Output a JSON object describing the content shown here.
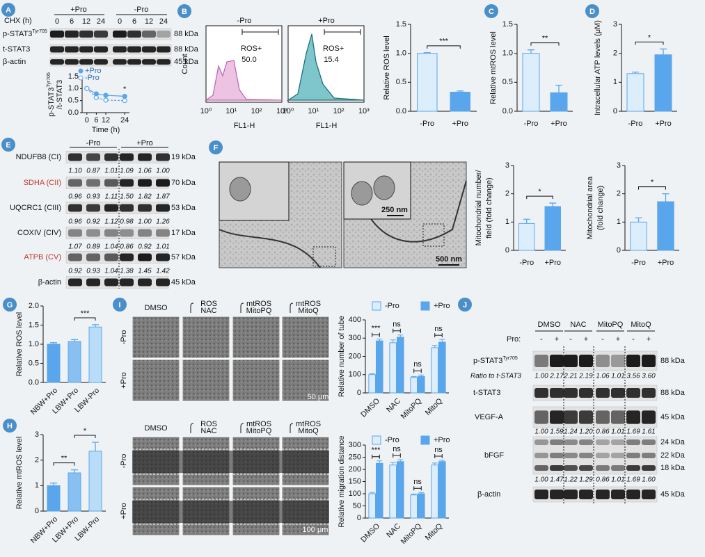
{
  "panels": {
    "A": {
      "label": "A",
      "chx": "CHX (h)",
      "groups": [
        "+Pro",
        "-Pro"
      ],
      "lanes": [
        "0",
        "6",
        "12",
        "24",
        "0",
        "6",
        "12",
        "24"
      ],
      "rows": [
        {
          "name": "p-STAT3",
          "sup": "Tyr705",
          "kda": "88 kDa"
        },
        {
          "name": "t-STAT3",
          "kda": "88 kDa"
        },
        {
          "name": "β-actin",
          "kda": "45 kDa"
        }
      ]
    },
    "B": {
      "label": "B",
      "ylabel": "Count",
      "xlabel": "FL1-H",
      "xticks": [
        "10⁰",
        "10¹",
        "10²",
        "10³"
      ],
      "plots": [
        {
          "title": "-Pro",
          "gate": "ROS+",
          "value": "50.0"
        },
        {
          "title": "+Pro",
          "gate": "ROS+",
          "value": "15.4"
        }
      ]
    },
    "C": {
      "label": "C"
    },
    "D": {
      "label": "D"
    },
    "E": {
      "label": "E",
      "groups": [
        "-Pro",
        "+Pro"
      ],
      "rows": [
        {
          "name": "NDUFB8 (CI)",
          "kda": "19 kDa",
          "ratios": [
            "1.10",
            "0.87",
            "1.01",
            "1.09",
            "1.06",
            "1.00"
          ]
        },
        {
          "name": "SDHA (CII)",
          "kda": "70 kDa",
          "color": "#c0392b",
          "ratios": [
            "0.96",
            "0.93",
            "1.11",
            "1.50",
            "1.82",
            "1.87"
          ]
        },
        {
          "name": "UQCRC1 (CIII)",
          "kda": "53 kDa",
          "ratios": [
            "0.96",
            "0.92",
            "1.12",
            "0.98",
            "1.00",
            "1.26"
          ]
        },
        {
          "name": "COXIV (CIV)",
          "kda": "17 kDa",
          "ratios": [
            "1.07",
            "0.89",
            "1.04",
            "0.86",
            "0.92",
            "1.01"
          ]
        },
        {
          "name": "ATPB (CV)",
          "kda": "57 kDa",
          "color": "#c0392b",
          "ratios": [
            "0.92",
            "0.93",
            "1.04",
            "1.38",
            "1.45",
            "1.42"
          ]
        },
        {
          "name": "β-actin",
          "kda": "45 kDa"
        }
      ]
    },
    "F": {
      "label": "F",
      "scales": [
        "250 nm",
        "500 nm"
      ]
    },
    "G": {
      "label": "G"
    },
    "H": {
      "label": "H"
    },
    "I": {
      "label": "I",
      "tube": {
        "columns": [
          {
            "top": "DMSO"
          },
          {
            "top": "ROS",
            "bottom": "NAC"
          },
          {
            "top": "mtROS",
            "bottom": "MitoPQ"
          },
          {
            "top": "mtROS",
            "bottom": "MitoQ"
          }
        ],
        "rows": [
          "-Pro",
          "+Pro"
        ],
        "scale": "50 μm"
      },
      "migration": {
        "columns": [
          {
            "top": "DMSO"
          },
          {
            "top": "ROS",
            "bottom": "NAC"
          },
          {
            "top": "mtROS",
            "bottom": "MitoPQ"
          },
          {
            "top": "mtROS",
            "bottom": "MitoQ"
          }
        ],
        "rows": [
          "-Pro",
          "+Pro"
        ],
        "scale": "100 μm"
      }
    },
    "J": {
      "label": "J",
      "columns": [
        "DMSO",
        "NAC",
        "MitoPQ",
        "MitoQ"
      ],
      "pro": "Pro:",
      "signs": [
        "-",
        "+",
        "-",
        "+",
        "-",
        "+",
        "-",
        "+"
      ],
      "rows": [
        {
          "name": "p-STAT3",
          "sup": "Tyr705",
          "kda": "88 kDa"
        },
        {
          "ratio_label": "Ratio to t-STAT3",
          "ratios": [
            "1.00",
            "2.17",
            "2.21",
            "2.19",
            "1.06",
            "1.01",
            "3.56",
            "3.60"
          ]
        },
        {
          "name": "t-STAT3",
          "kda": "88 kDa"
        },
        {
          "name": "VEGF-A",
          "kda": "45 kDa",
          "ratios": [
            "1.00",
            "1.59",
            "1.24",
            "1.20",
            "0.86",
            "1.01",
            "1.69",
            "1.61"
          ]
        },
        {
          "name": "bFGF",
          "kdas": [
            "24 kDa",
            "22 kDa",
            "18 kDa"
          ],
          "ratios": [
            "1.00",
            "1.47",
            "1.22",
            "1.29",
            "0.86",
            "1.01",
            "1.69",
            "1.60"
          ]
        },
        {
          "name": "β-actin",
          "kda": "45 kDa"
        }
      ]
    }
  },
  "chart_data": [
    {
      "type": "line",
      "ylabel": {
        "text": "p-STAT3",
        "sup": "Tyr705",
        "line2": "/t-STAT3"
      },
      "xlabel": "Time (h)",
      "x": [
        0,
        6,
        12,
        24
      ],
      "xlim": [
        -3,
        27
      ],
      "xticks": [
        0,
        6,
        12,
        24
      ],
      "ylim": [
        0,
        1.5
      ],
      "yticks": [
        {
          "value": 0,
          "label": "0.0"
        },
        0.5,
        {
          "value": 1,
          "label": "1.0"
        },
        1.5
      ],
      "series": [
        {
          "name": "+Pro",
          "color": "#5aa6ec",
          "linestyle": "solid",
          "values": [
            1.0,
            0.78,
            0.72,
            0.68
          ]
        },
        {
          "name": "-Pro",
          "color": "#5aa6ec",
          "linestyle": "dashed",
          "values": [
            1.0,
            0.62,
            0.52,
            0.5
          ]
        }
      ],
      "annotations": [
        "*"
      ]
    },
    {
      "type": "bar",
      "ylabel": "Relative ROS level",
      "categories": [
        "-Pro",
        "+Pro"
      ],
      "values": [
        1.0,
        0.33
      ],
      "errors": [
        0.01,
        0.02
      ],
      "colors": [
        "#dcedfb",
        "#5aa6ec"
      ],
      "ylim": [
        0,
        1.5
      ],
      "yticks": [
        {
          "value": 0,
          "label": "0.0"
        },
        0.5,
        {
          "value": 1,
          "label": "1.0"
        },
        1.5
      ],
      "annotations": [
        "***"
      ]
    },
    {
      "type": "bar",
      "ylabel": "Relative mtROS level",
      "categories": [
        "-Pro",
        "+Pro"
      ],
      "values": [
        1.0,
        0.32
      ],
      "errors": [
        0.06,
        0.13
      ],
      "colors": [
        "#dcedfb",
        "#5aa6ec"
      ],
      "ylim": [
        0,
        1.5
      ],
      "yticks": [
        {
          "value": 0,
          "label": "0.0"
        },
        0.5,
        {
          "value": 1,
          "label": "1.0"
        },
        1.5
      ],
      "annotations": [
        "**"
      ]
    },
    {
      "type": "bar",
      "ylabel": "Intracellular ATP levels (μM)",
      "categories": [
        "-Pro",
        "+Pro"
      ],
      "values": [
        1.3,
        1.95
      ],
      "errors": [
        0.05,
        0.2
      ],
      "colors": [
        "#dcedfb",
        "#5aa6ec"
      ],
      "ylim": [
        0,
        3
      ],
      "yticks": [
        0,
        1,
        2,
        3
      ],
      "annotations": [
        "*"
      ]
    },
    {
      "type": "bar",
      "ylabel": "Mitochondrial number/ field (fold change)",
      "categories": [
        "-Pro",
        "+Pro"
      ],
      "values": [
        0.95,
        1.55
      ],
      "errors": [
        0.15,
        0.12
      ],
      "colors": [
        "#dcedfb",
        "#5aa6ec"
      ],
      "ylim": [
        0,
        3
      ],
      "yticks": [
        0,
        1,
        2,
        3
      ],
      "annotations": [
        "*"
      ]
    },
    {
      "type": "bar",
      "ylabel": "Mitochondrial area (fold change)",
      "categories": [
        "-Pro",
        "+Pro"
      ],
      "values": [
        1.0,
        1.72
      ],
      "errors": [
        0.15,
        0.28
      ],
      "colors": [
        "#dcedfb",
        "#5aa6ec"
      ],
      "ylim": [
        0,
        3
      ],
      "yticks": [
        0,
        1,
        2,
        3
      ],
      "annotations": [
        "*"
      ]
    },
    {
      "type": "bar",
      "ylabel": "Relative ROS level",
      "categories": [
        "NBW+Pro",
        "LBW+Pro",
        "LBW-Pro"
      ],
      "values": [
        1.0,
        1.07,
        1.45
      ],
      "errors": [
        0.04,
        0.05,
        0.06
      ],
      "colors": [
        "#5aa6ec",
        "#89c0f2",
        "#b9dcf8"
      ],
      "ylim": [
        0,
        2
      ],
      "yticks": [
        {
          "value": 0,
          "label": "0.0"
        },
        0.5,
        {
          "value": 1,
          "label": "1.0"
        },
        1.5,
        {
          "value": 2,
          "label": "2.0"
        }
      ],
      "annotations": [
        "***"
      ]
    },
    {
      "type": "bar",
      "ylabel": "Relative mtROS level",
      "categories": [
        "NBW+Pro",
        "LBW+Pro",
        "LBW-Pro"
      ],
      "values": [
        1.0,
        1.5,
        2.35
      ],
      "errors": [
        0.1,
        0.12,
        0.35
      ],
      "colors": [
        "#5aa6ec",
        "#89c0f2",
        "#b9dcf8"
      ],
      "ylim": [
        0,
        3
      ],
      "yticks": [
        0,
        1,
        2,
        3
      ],
      "annotations": [
        "**",
        "*"
      ]
    },
    {
      "type": "grouped_bar",
      "ylabel": "Relative number of tube",
      "categories": [
        "DMSO",
        "NAC",
        "MitoPQ",
        "MitoQ"
      ],
      "series": [
        {
          "name": "-Pro",
          "color": "#dcedfb",
          "values": [
            100,
            275,
            85,
            248
          ],
          "errors": [
            5,
            15,
            5,
            12
          ]
        },
        {
          "name": "+Pro",
          "color": "#5aa6ec",
          "values": [
            285,
            305,
            90,
            278
          ],
          "errors": [
            10,
            12,
            8,
            15
          ]
        }
      ],
      "ylim": [
        0,
        400
      ],
      "yticks": [
        0,
        100,
        200,
        300,
        400
      ],
      "legend": "top",
      "annotations": [
        "***",
        "ns",
        "ns",
        "ns"
      ]
    },
    {
      "type": "grouped_bar",
      "ylabel": "Relative migration distance",
      "categories": [
        "DMSO",
        "NAC",
        "MitoPQ",
        "MitoQ"
      ],
      "series": [
        {
          "name": "-Pro",
          "color": "#dcedfb",
          "values": [
            100,
            218,
            95,
            218
          ],
          "errors": [
            5,
            10,
            4,
            8
          ]
        },
        {
          "name": "+Pro",
          "color": "#5aa6ec",
          "values": [
            225,
            232,
            100,
            232
          ],
          "errors": [
            10,
            8,
            5,
            5
          ]
        }
      ],
      "ylim": [
        0,
        300
      ],
      "yticks": [
        0,
        50,
        100,
        150,
        200,
        250,
        300
      ],
      "legend": "top",
      "annotations": [
        "***",
        "ns",
        "ns",
        "ns"
      ]
    }
  ]
}
